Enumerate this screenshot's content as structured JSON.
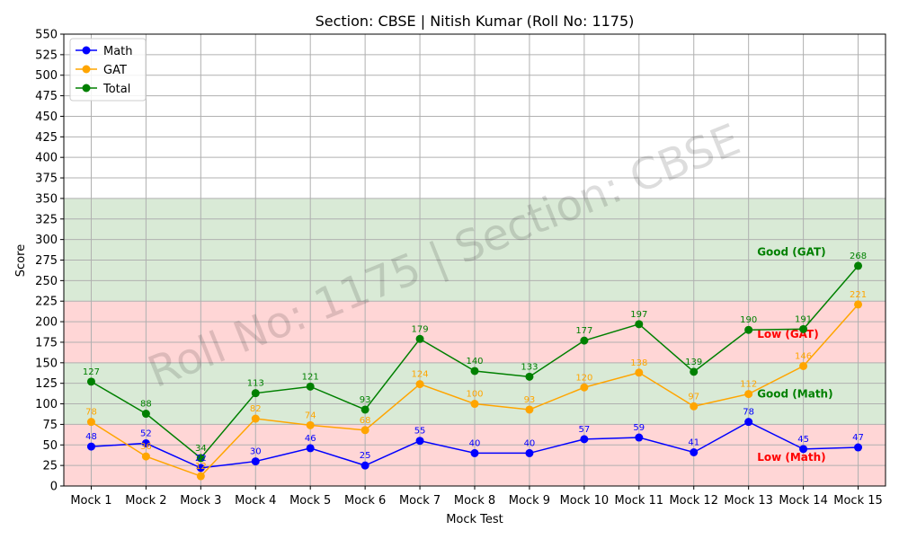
{
  "chart_data": {
    "type": "line",
    "title": "Section: CBSE | Nitish Kumar (Roll No: 1175)",
    "xlabel": "Mock Test",
    "ylabel": "Score",
    "ylim": [
      0,
      550
    ],
    "ytick_step": 25,
    "grid": true,
    "legend_position": "top-left",
    "watermark": "Roll No: 1175 | Section: CBSE",
    "categories": [
      "Mock 1",
      "Mock 2",
      "Mock 3",
      "Mock 4",
      "Mock 5",
      "Mock 6",
      "Mock 7",
      "Mock 8",
      "Mock 9",
      "Mock 10",
      "Mock 11",
      "Mock 12",
      "Mock 13",
      "Mock 14",
      "Mock 15"
    ],
    "series": [
      {
        "name": "Math",
        "color": "#0000ff",
        "values": [
          48,
          52,
          22,
          30,
          46,
          25,
          55,
          40,
          40,
          57,
          59,
          41,
          78,
          45,
          47
        ]
      },
      {
        "name": "GAT",
        "color": "#ffa500",
        "values": [
          78,
          36,
          12,
          82,
          74,
          68,
          124,
          100,
          93,
          120,
          138,
          97,
          112,
          146,
          221
        ]
      },
      {
        "name": "Total",
        "color": "#008000",
        "values": [
          127,
          88,
          34,
          113,
          121,
          93,
          179,
          140,
          133,
          177,
          197,
          139,
          190,
          191,
          268
        ]
      }
    ],
    "bands": [
      {
        "from": 0,
        "to": 75,
        "color": "#ffd6d6"
      },
      {
        "from": 75,
        "to": 150,
        "color": "#d9ead6"
      },
      {
        "from": 150,
        "to": 225,
        "color": "#ffd6d6"
      },
      {
        "from": 225,
        "to": 350,
        "color": "#d9ead6"
      }
    ],
    "band_labels": [
      {
        "text": "Good (GAT)",
        "y": 285,
        "color": "#008000"
      },
      {
        "text": "Low (GAT)",
        "y": 185,
        "color": "#ff0000"
      },
      {
        "text": "Good (Math)",
        "y": 112,
        "color": "#008000"
      },
      {
        "text": "Low (Math)",
        "y": 35,
        "color": "#ff0000"
      }
    ]
  }
}
